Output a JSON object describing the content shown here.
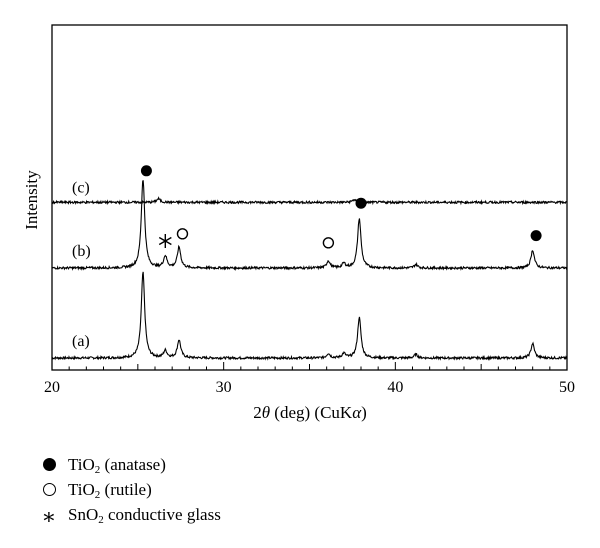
{
  "chart_data": {
    "type": "line",
    "xlabel": "2θ (deg) (CuKα)",
    "ylabel": "Intensity",
    "xlim": [
      20,
      50
    ],
    "x_ticks": [
      20,
      30,
      40,
      50
    ],
    "y_ticks_shown": false,
    "grid": false,
    "series": [
      {
        "name": "(a)",
        "baseline": 0.0,
        "peaks": [
          {
            "x": 25.3,
            "height": 0.95
          },
          {
            "x": 26.6,
            "height": 0.08
          },
          {
            "x": 27.4,
            "height": 0.2
          },
          {
            "x": 36.1,
            "height": 0.05
          },
          {
            "x": 37.0,
            "height": 0.05
          },
          {
            "x": 37.9,
            "height": 0.45
          },
          {
            "x": 41.2,
            "height": 0.04
          },
          {
            "x": 48.0,
            "height": 0.16
          }
        ]
      },
      {
        "name": "(b)",
        "baseline": 1.0,
        "peaks": [
          {
            "x": 25.3,
            "height": 0.99
          },
          {
            "x": 26.6,
            "height": 0.13
          },
          {
            "x": 27.4,
            "height": 0.23
          },
          {
            "x": 36.1,
            "height": 0.08
          },
          {
            "x": 37.0,
            "height": 0.05
          },
          {
            "x": 37.9,
            "height": 0.55
          },
          {
            "x": 41.2,
            "height": 0.04
          },
          {
            "x": 48.0,
            "height": 0.2
          }
        ]
      },
      {
        "name": "(c)",
        "baseline": 1.73,
        "peaks": [
          {
            "x": 26.2,
            "height": 0.04
          },
          {
            "x": 37.6,
            "height": 0.03
          }
        ]
      }
    ],
    "annotations": [
      {
        "marker": "filled-circle",
        "x": 25.5,
        "y": 2.08
      },
      {
        "marker": "open-circle",
        "x": 27.6,
        "y": 1.38
      },
      {
        "marker": "asterisk",
        "x": 26.6,
        "y": 1.3
      },
      {
        "marker": "open-circle",
        "x": 36.1,
        "y": 1.28
      },
      {
        "marker": "filled-circle",
        "x": 38.0,
        "y": 1.72
      },
      {
        "marker": "filled-circle",
        "x": 48.2,
        "y": 1.36
      }
    ],
    "legend": {
      "placement": "bottom-left",
      "entries": [
        {
          "marker": "filled-circle",
          "label": "TiO",
          "sub": "2",
          "suffix": " (anatase)"
        },
        {
          "marker": "open-circle",
          "label": "TiO",
          "sub": "2",
          "suffix": " (rutile)"
        },
        {
          "marker": "asterisk",
          "label": "SnO",
          "sub": "2",
          "suffix": " conductive glass"
        }
      ]
    }
  }
}
